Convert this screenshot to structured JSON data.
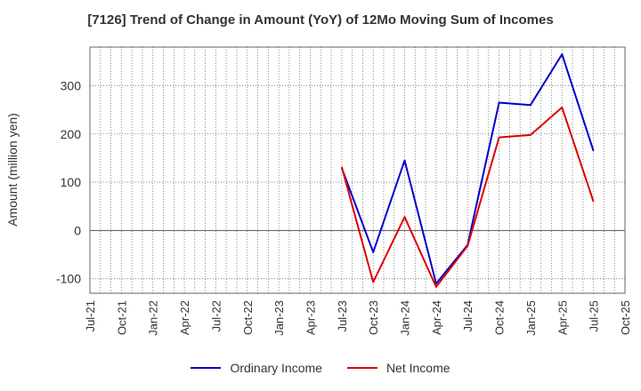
{
  "chart_data": {
    "type": "line",
    "title": "[7126]  Trend of Change in Amount (YoY) of 12Mo Moving Sum of Incomes",
    "xlabel": "",
    "ylabel": "Amount (million yen)",
    "categories": [
      "Jul-21",
      "Oct-21",
      "Jan-22",
      "Apr-22",
      "Jul-22",
      "Oct-22",
      "Jan-23",
      "Apr-23",
      "Jul-23",
      "Oct-23",
      "Jan-24",
      "Apr-24",
      "Jul-24",
      "Oct-24",
      "Jan-25",
      "Apr-25",
      "Jul-25",
      "Oct-25"
    ],
    "ylim": [
      -130,
      380
    ],
    "yticks": [
      -100,
      0,
      100,
      200,
      300
    ],
    "grid": true,
    "legend_position": "bottom",
    "series": [
      {
        "name": "Ordinary Income",
        "color": "#0000cc",
        "values": [
          null,
          null,
          null,
          null,
          null,
          null,
          null,
          null,
          130,
          -45,
          145,
          -110,
          -30,
          265,
          260,
          365,
          165,
          null
        ]
      },
      {
        "name": "Net Income",
        "color": "#dd0000",
        "values": [
          null,
          null,
          null,
          null,
          null,
          null,
          null,
          null,
          132,
          -107,
          28,
          -117,
          -32,
          193,
          198,
          255,
          60,
          null
        ]
      }
    ]
  }
}
